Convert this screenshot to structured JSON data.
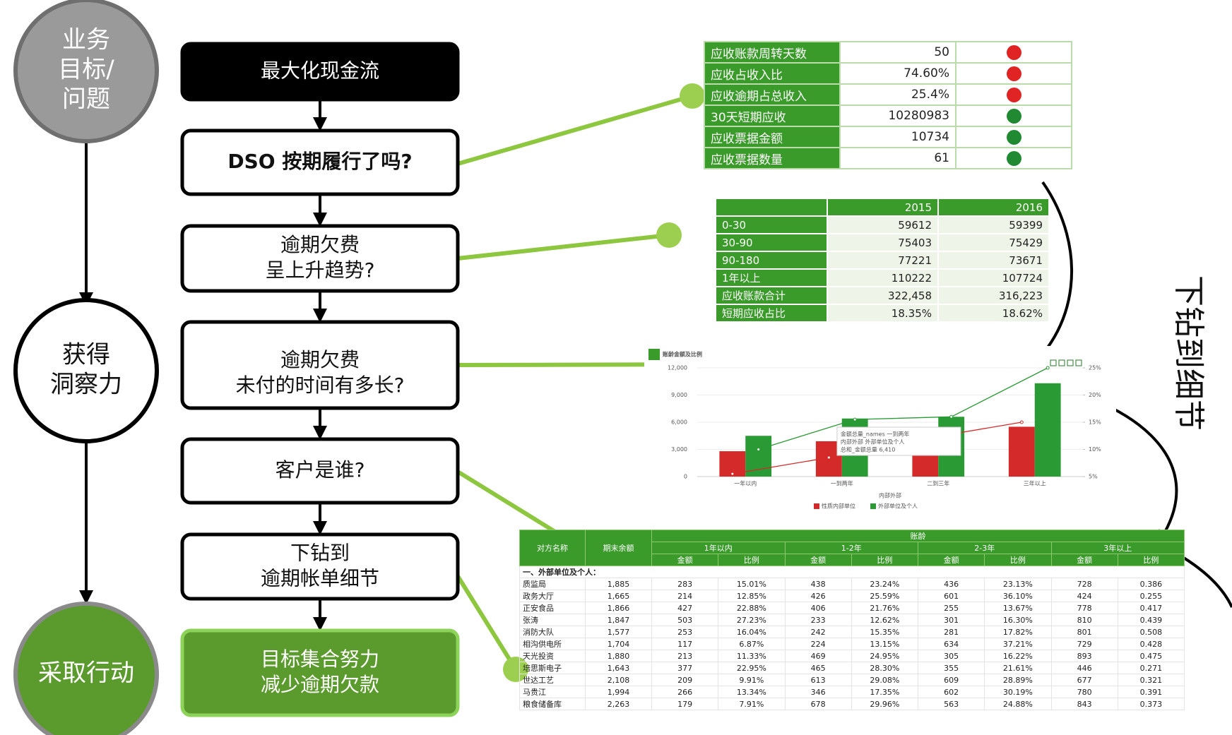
{
  "goal_circles": [
    {
      "lines": [
        "业务",
        "目标/",
        "问题"
      ]
    },
    {
      "lines": [
        "获得",
        "洞察力"
      ]
    },
    {
      "lines": [
        "采取行动"
      ]
    }
  ],
  "flow": [
    {
      "lines": [
        "最大化现金流"
      ]
    },
    {
      "lines": [
        "DSO 按期履行了吗?"
      ]
    },
    {
      "lines": [
        "逾期欠费",
        "呈上升趋势?"
      ]
    },
    {
      "lines": [
        "逾期欠费",
        "未付的时间有多长?"
      ]
    },
    {
      "lines": [
        "客户是谁?"
      ]
    },
    {
      "lines": [
        "下钻到",
        "逾期帐单细节"
      ]
    },
    {
      "lines": [
        "目标集合努力",
        "减少逾期欠款"
      ]
    }
  ],
  "kpi_table": {
    "rows": [
      {
        "label": "应收账款周转天数",
        "value": "50",
        "status_color": "#e02424"
      },
      {
        "label": "应收占收入比",
        "value": "74.60%",
        "status_color": "#e02424"
      },
      {
        "label": "应收逾期占总收入",
        "value": "25.4%",
        "status_color": "#e02424"
      },
      {
        "label": "30天短期应收",
        "value": "10280983",
        "status_color": "#1f8a32"
      },
      {
        "label": "应收票据金额",
        "value": "10734",
        "status_color": "#1f8a32"
      },
      {
        "label": "应收票据数量",
        "value": "61",
        "status_color": "#1f8a32"
      }
    ]
  },
  "aging_table": {
    "columns": [
      "2015",
      "2016"
    ],
    "rows": [
      {
        "label": "0-30",
        "values": [
          "59612",
          "59399"
        ]
      },
      {
        "label": "30-90",
        "values": [
          "75403",
          "75429"
        ]
      },
      {
        "label": "90-180",
        "values": [
          "77221",
          "73671"
        ]
      },
      {
        "label": "1年以上",
        "values": [
          "110222",
          "107724"
        ]
      },
      {
        "label": "应收账款合计",
        "values": [
          "322,458",
          "316,223"
        ]
      },
      {
        "label": "短期应收占比",
        "values": [
          "18.35%",
          "18.62%"
        ]
      }
    ]
  },
  "chart": {
    "type": "bar",
    "title": "账龄金额及比例",
    "xlabel": "内部外部",
    "categories": [
      "一年以内",
      "一到两年",
      "二到三年",
      "三年以上"
    ],
    "series": [
      {
        "name": "性质内部单位",
        "color": "#d42a2a",
        "values": [
          2800,
          3900,
          2800,
          5500
        ],
        "ratio_values": [
          5.5,
          8.5,
          12,
          15
        ]
      },
      {
        "name": "外部单位及个人",
        "color": "#2a9a35",
        "values": [
          4500,
          6410,
          6600,
          10300
        ],
        "ratio_values": [
          10,
          15.5,
          16,
          25
        ]
      }
    ],
    "ylim": [
      0,
      12000
    ],
    "yticks": [
      0,
      {
        "value": 3000,
        "label": "3,000"
      },
      {
        "value": 6000,
        "label": "6,000"
      },
      {
        "value": 9000,
        "label": "9,000"
      },
      {
        "value": 12000,
        "label": "12,000"
      }
    ],
    "y2lim": [
      5,
      25
    ],
    "y2ticks": [
      {
        "value": 5,
        "label": "5%"
      },
      {
        "value": 10,
        "label": "10%"
      },
      {
        "value": 15,
        "label": "15%"
      },
      {
        "value": 20,
        "label": "20%"
      },
      {
        "value": 25,
        "label": "25%"
      }
    ],
    "tooltip": [
      "金额总量_names  一到两年",
      "内部外部  外部单位及个人",
      "总和_金额总量  6,410"
    ]
  },
  "detail_table": {
    "name_header": "对方名称",
    "balance_header": "期末余额",
    "aging_header": "账龄",
    "groups": [
      "1年以内",
      "1-2年",
      "2-3年",
      "3年以上"
    ],
    "sub_headers": [
      "金额",
      "比例"
    ],
    "section": "一、外部单位及个人：",
    "rows": [
      [
        "质监局",
        "1,885",
        "283",
        "15.01%",
        "438",
        "23.24%",
        "436",
        "23.13%",
        "728",
        "0.386"
      ],
      [
        "政务大厅",
        "1,665",
        "214",
        "12.85%",
        "426",
        "25.59%",
        "601",
        "36.10%",
        "424",
        "0.255"
      ],
      [
        "正安食品",
        "1,866",
        "427",
        "22.88%",
        "406",
        "21.76%",
        "255",
        "13.67%",
        "778",
        "0.417"
      ],
      [
        "张涛",
        "1,847",
        "503",
        "27.23%",
        "233",
        "12.62%",
        "301",
        "16.30%",
        "810",
        "0.439"
      ],
      [
        "消防大队",
        "1,577",
        "253",
        "16.04%",
        "242",
        "15.35%",
        "281",
        "17.82%",
        "801",
        "0.508"
      ],
      [
        "相沟供电所",
        "1,704",
        "117",
        "6.87%",
        "224",
        "13.15%",
        "634",
        "37.21%",
        "729",
        "0.428"
      ],
      [
        "天光投资",
        "1,880",
        "213",
        "11.33%",
        "469",
        "24.95%",
        "305",
        "16.22%",
        "893",
        "0.475"
      ],
      [
        "培思斯电子",
        "1,643",
        "377",
        "22.95%",
        "465",
        "28.30%",
        "355",
        "21.61%",
        "446",
        "0.271"
      ],
      [
        "世达工艺",
        "2,108",
        "209",
        "9.91%",
        "613",
        "29.08%",
        "609",
        "28.89%",
        "677",
        "0.321"
      ],
      [
        "马贵江",
        "1,994",
        "266",
        "13.34%",
        "346",
        "17.35%",
        "602",
        "30.19%",
        "780",
        "0.391"
      ],
      [
        "粮食储备库",
        "2,263",
        "179",
        "7.91%",
        "678",
        "29.96%",
        "563",
        "24.88%",
        "843",
        "0.373"
      ]
    ]
  },
  "side_label": "下钻到细节"
}
